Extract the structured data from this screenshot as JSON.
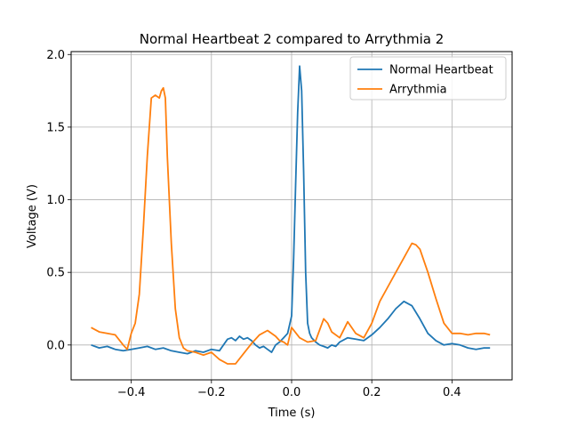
{
  "chart_data": {
    "type": "line",
    "title": "Normal Heartbeat 2 compared to Arrythmia 2",
    "xlabel": "Time (s)",
    "ylabel": "Voltage (V)",
    "xlim": [
      -0.55,
      0.55
    ],
    "ylim": [
      -0.24,
      2.02
    ],
    "xticks": [
      -0.4,
      -0.2,
      0.0,
      0.2,
      0.4
    ],
    "xtick_labels": [
      "−0.4",
      "−0.2",
      "0.0",
      "0.2",
      "0.4"
    ],
    "yticks": [
      0.0,
      0.5,
      1.0,
      1.5,
      2.0
    ],
    "ytick_labels": [
      "0.0",
      "0.5",
      "1.0",
      "1.5",
      "2.0"
    ],
    "grid": true,
    "legend_position": "top-right",
    "series": [
      {
        "name": "Normal Heartbeat",
        "color": "#1f77b4",
        "x": [
          -0.5,
          -0.48,
          -0.46,
          -0.44,
          -0.42,
          -0.4,
          -0.38,
          -0.36,
          -0.34,
          -0.32,
          -0.3,
          -0.28,
          -0.26,
          -0.24,
          -0.22,
          -0.2,
          -0.18,
          -0.16,
          -0.15,
          -0.14,
          -0.13,
          -0.12,
          -0.11,
          -0.1,
          -0.09,
          -0.08,
          -0.07,
          -0.06,
          -0.05,
          -0.04,
          -0.03,
          -0.02,
          -0.01,
          0.0,
          0.005,
          0.01,
          0.015,
          0.02,
          0.025,
          0.03,
          0.035,
          0.04,
          0.045,
          0.05,
          0.06,
          0.07,
          0.08,
          0.09,
          0.1,
          0.11,
          0.12,
          0.14,
          0.16,
          0.18,
          0.2,
          0.22,
          0.24,
          0.26,
          0.28,
          0.3,
          0.32,
          0.34,
          0.36,
          0.38,
          0.4,
          0.42,
          0.44,
          0.46,
          0.48,
          0.495
        ],
        "y": [
          0.0,
          -0.02,
          -0.01,
          -0.03,
          -0.04,
          -0.03,
          -0.02,
          -0.01,
          -0.03,
          -0.02,
          -0.04,
          -0.05,
          -0.06,
          -0.04,
          -0.05,
          -0.03,
          -0.04,
          0.04,
          0.05,
          0.03,
          0.06,
          0.04,
          0.05,
          0.03,
          0.0,
          -0.02,
          -0.01,
          -0.03,
          -0.05,
          0.0,
          0.02,
          0.05,
          0.08,
          0.2,
          0.6,
          1.1,
          1.6,
          1.92,
          1.75,
          1.2,
          0.5,
          0.15,
          0.08,
          0.05,
          0.02,
          0.0,
          -0.01,
          -0.02,
          0.0,
          -0.01,
          0.02,
          0.05,
          0.04,
          0.03,
          0.07,
          0.12,
          0.18,
          0.25,
          0.3,
          0.27,
          0.18,
          0.08,
          0.03,
          0.0,
          0.01,
          0.0,
          -0.02,
          -0.03,
          -0.02,
          -0.02
        ]
      },
      {
        "name": "Arrythmia",
        "color": "#ff7f0e",
        "x": [
          -0.5,
          -0.48,
          -0.46,
          -0.44,
          -0.42,
          -0.41,
          -0.4,
          -0.39,
          -0.38,
          -0.37,
          -0.36,
          -0.35,
          -0.34,
          -0.33,
          -0.325,
          -0.32,
          -0.315,
          -0.31,
          -0.3,
          -0.29,
          -0.28,
          -0.27,
          -0.26,
          -0.24,
          -0.22,
          -0.2,
          -0.18,
          -0.16,
          -0.14,
          -0.12,
          -0.1,
          -0.08,
          -0.06,
          -0.04,
          -0.03,
          -0.02,
          -0.01,
          0.0,
          0.02,
          0.04,
          0.06,
          0.08,
          0.09,
          0.1,
          0.12,
          0.14,
          0.16,
          0.18,
          0.2,
          0.22,
          0.24,
          0.26,
          0.28,
          0.3,
          0.31,
          0.32,
          0.34,
          0.36,
          0.38,
          0.4,
          0.42,
          0.44,
          0.46,
          0.48,
          0.495
        ],
        "y": [
          0.12,
          0.09,
          0.08,
          0.07,
          0.0,
          -0.03,
          0.08,
          0.15,
          0.35,
          0.8,
          1.3,
          1.7,
          1.72,
          1.7,
          1.75,
          1.77,
          1.7,
          1.3,
          0.7,
          0.25,
          0.05,
          -0.02,
          -0.04,
          -0.05,
          -0.07,
          -0.05,
          -0.1,
          -0.13,
          -0.13,
          -0.06,
          0.01,
          0.07,
          0.1,
          0.06,
          0.03,
          0.02,
          0.0,
          0.12,
          0.05,
          0.02,
          0.03,
          0.18,
          0.15,
          0.09,
          0.05,
          0.16,
          0.08,
          0.05,
          0.15,
          0.3,
          0.4,
          0.5,
          0.6,
          0.7,
          0.69,
          0.66,
          0.5,
          0.32,
          0.15,
          0.08,
          0.08,
          0.07,
          0.08,
          0.08,
          0.07
        ]
      }
    ]
  }
}
